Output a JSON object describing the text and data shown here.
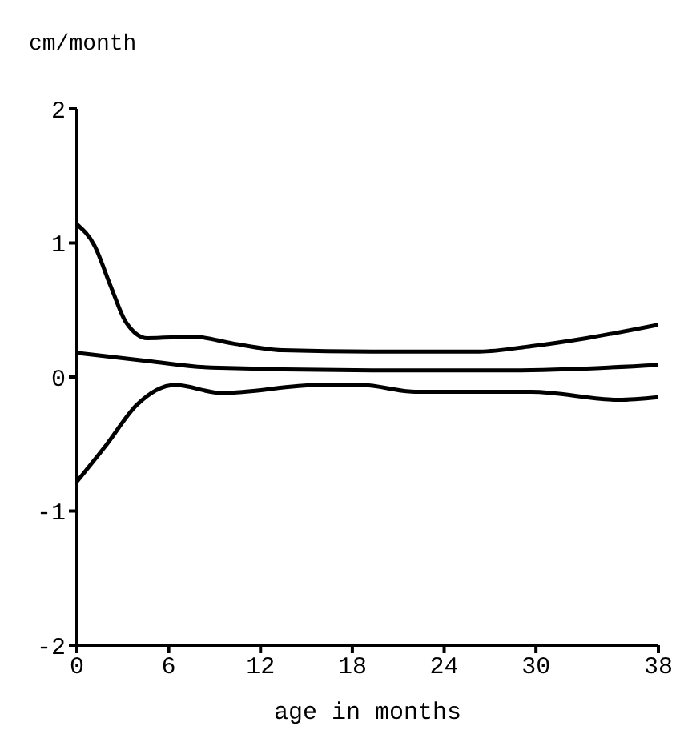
{
  "chart_data": {
    "type": "line",
    "ylabel": "cm/month",
    "xlabel": "age in months",
    "xlim": [
      0,
      38
    ],
    "xticks": [
      0,
      6,
      12,
      18,
      24,
      30,
      38
    ],
    "ylim": [
      -2,
      2
    ],
    "yticks": [
      -2,
      -1,
      0,
      1,
      2
    ],
    "marker": "none",
    "line_style": "solid",
    "series": [
      {
        "color": "#000000",
        "x": [
          0,
          1.15,
          2.2,
          3.2,
          4.6,
          7.7,
          10.2,
          13.4,
          19.3,
          26.3,
          29.7,
          33.3,
          38
        ],
        "values": [
          1.14,
          0.98,
          0.68,
          0.41,
          0.29,
          0.3,
          0.25,
          0.2,
          0.19,
          0.19,
          0.23,
          0.29,
          0.39
        ]
      },
      {
        "color": "#000000",
        "x": [
          0,
          4.6,
          8.8,
          19.3,
          28.4,
          38
        ],
        "values": [
          0.18,
          0.12,
          0.07,
          0.05,
          0.05,
          0.09
        ]
      },
      {
        "color": "#000000",
        "x": [
          0,
          1.9,
          3.9,
          6.4,
          9.5,
          15.8,
          18.6,
          22.1,
          29.7,
          35.4,
          38
        ],
        "values": [
          -0.78,
          -0.51,
          -0.21,
          -0.06,
          -0.12,
          -0.06,
          -0.06,
          -0.11,
          -0.11,
          -0.17,
          -0.15
        ]
      }
    ]
  }
}
